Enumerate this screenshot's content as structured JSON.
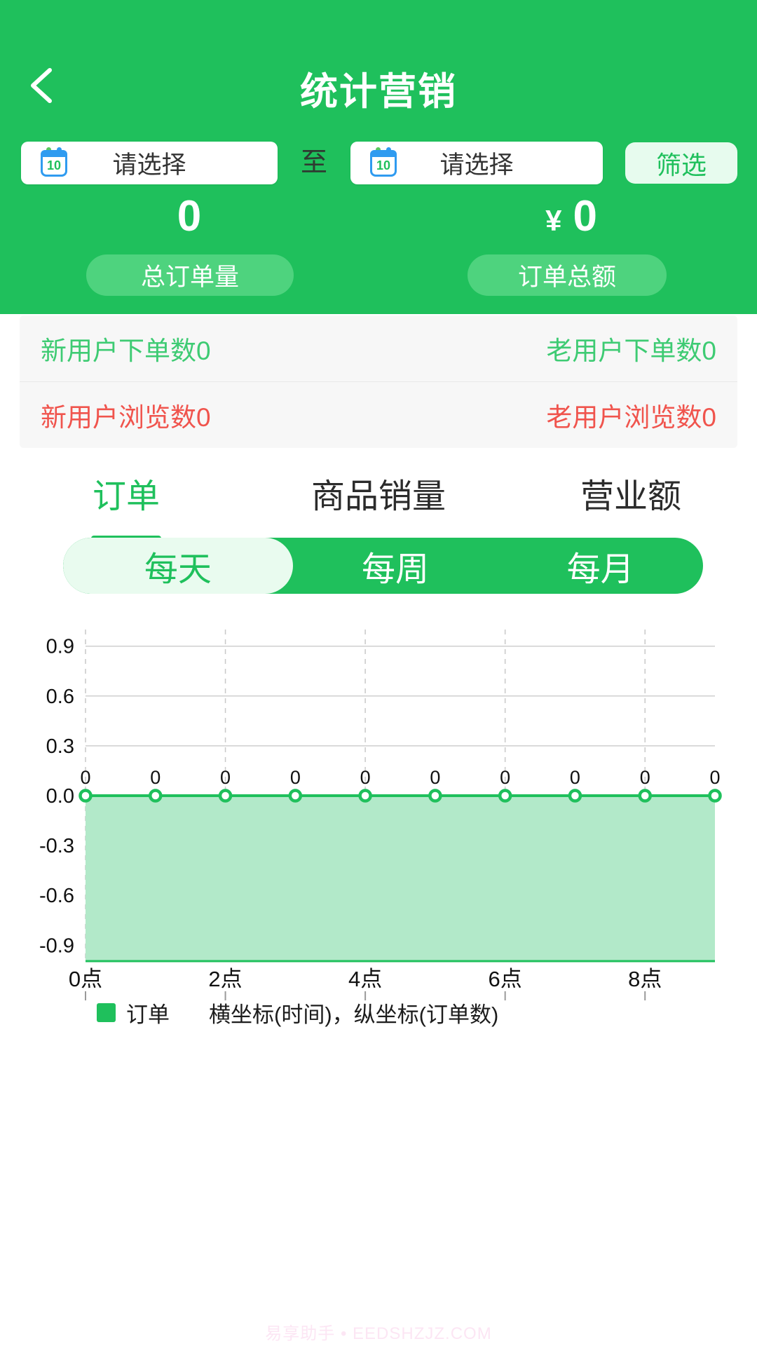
{
  "header": {
    "title": "统计营销",
    "date_from": {
      "placeholder": "请选择",
      "calendar_day": "10"
    },
    "to_label": "至",
    "date_to": {
      "placeholder": "请选择",
      "calendar_day": "10"
    },
    "filter_button": "筛选",
    "stats": [
      {
        "value": "0",
        "label": "总订单量"
      },
      {
        "value": "0",
        "currency": "¥",
        "label": "订单总额"
      }
    ]
  },
  "summary": {
    "rows": [
      {
        "left": "新用户下单数0",
        "right": "老用户下单数0",
        "color": "#3ecb73"
      },
      {
        "left": "新用户浏览数0",
        "right": "老用户浏览数0",
        "color": "#f0544d"
      }
    ]
  },
  "tabs": [
    {
      "label": "订单",
      "active": true
    },
    {
      "label": "商品销量",
      "active": false
    },
    {
      "label": "营业额",
      "active": false
    }
  ],
  "period_segments": [
    {
      "label": "每天",
      "active": true
    },
    {
      "label": "每周",
      "active": false
    },
    {
      "label": "每月",
      "active": false
    }
  ],
  "chart_data": {
    "type": "area",
    "series": [
      {
        "name": "订单",
        "values": [
          0,
          0,
          0,
          0,
          0,
          0,
          0,
          0,
          0,
          0
        ]
      }
    ],
    "n_points": 10,
    "x_labels": [
      "0点",
      "2点",
      "4点",
      "6点",
      "8点"
    ],
    "x_label_interval": 2,
    "y_ticks": [
      0.9,
      0.6,
      0.3,
      0.0,
      -0.3,
      -0.6,
      -0.9
    ],
    "ylim": [
      -1,
      1
    ],
    "point_label": "0",
    "xlabel": "时间",
    "ylabel": "订单数",
    "grid": true,
    "legend_position": "bottom",
    "line_color": "#1fc05c",
    "fill_color": "#b2e9c9",
    "grid_color": "#cfcfcf",
    "dash_color": "#c9c9c9",
    "tick_color": "#9a9a9a",
    "axis_text_color": "#111111"
  },
  "legend": {
    "series": "订单",
    "note": "横坐标(时间)，纵坐标(订单数)",
    "swatch_color": "#1fc05c"
  },
  "watermark": "易享助手 • EEDSHZJZ.COM",
  "colors": {
    "primary_green": "#1fc05c",
    "light_button_green": "#4ed37e",
    "pale_green": "#e7fbee",
    "summary_green": "#3ecb73",
    "summary_red": "#f0544d",
    "calendar_blue": "#2f9bf0"
  }
}
